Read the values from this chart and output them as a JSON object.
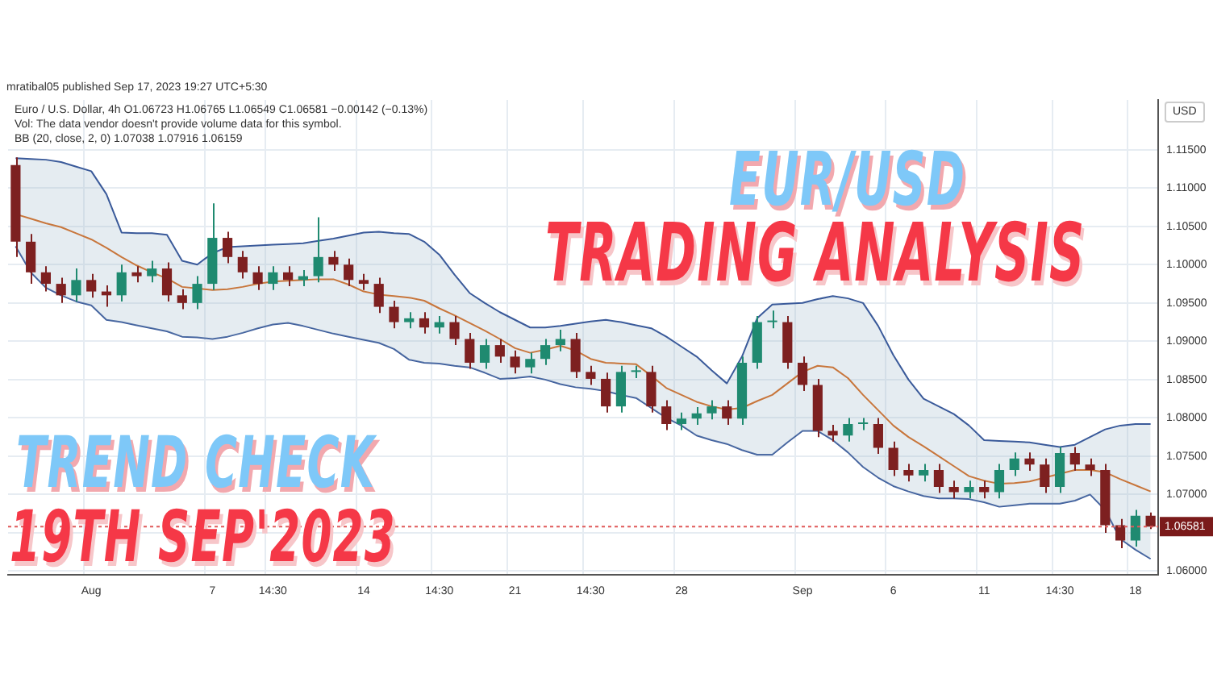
{
  "chart_data": {
    "type": "candlestick",
    "title": "EUR/USD",
    "subtitle": "TRADING ANALYSIS",
    "ylabel": "USD",
    "annotations": [
      "mratibal05 published Sep 17, 2023 19:27 UTC+5:30",
      "Euro / U.S. Dollar, 4h O1.06723 H1.06765 L1.06549 C1.06581 −0.00142 (−0.13%)",
      "Vol: The data vendor doesn't provide volume data for this symbol.",
      "BB (20, close, 2, 0) 1.07038 1.07916 1.06159",
      "TREND CHECK",
      "19TH SEP'2023"
    ],
    "categories": [
      null,
      null,
      null,
      null,
      null,
      "Aug",
      null,
      null,
      null,
      null,
      null,
      null,
      null,
      "7",
      null,
      null,
      null,
      "14:30",
      null,
      null,
      null,
      null,
      null,
      "14",
      null,
      null,
      null,
      null,
      "14:30",
      null,
      null,
      null,
      null,
      "21",
      null,
      null,
      null,
      null,
      "14:30",
      null,
      null,
      null,
      null,
      null,
      "28",
      null,
      null,
      null,
      null,
      null,
      null,
      null,
      "Sep",
      null,
      null,
      null,
      null,
      null,
      "6",
      null,
      null,
      null,
      null,
      null,
      "11",
      null,
      null,
      null,
      null,
      "14:30",
      null,
      null,
      null,
      null,
      "18",
      null
    ],
    "ohlc": [
      [
        1.113,
        1.114,
        1.101,
        1.103
      ],
      [
        1.103,
        1.104,
        1.0975,
        1.099
      ],
      [
        1.099,
        1.0998,
        1.0965,
        1.0975
      ],
      [
        1.0975,
        1.0983,
        1.095,
        1.096
      ],
      [
        1.096,
        1.0995,
        1.0952,
        1.098
      ],
      [
        1.098,
        1.0988,
        1.0957,
        1.0965
      ],
      [
        1.0965,
        1.0973,
        1.0945,
        1.096
      ],
      [
        1.096,
        1.1,
        1.0952,
        1.099
      ],
      [
        1.099,
        1.0998,
        1.0977,
        1.0985
      ],
      [
        1.0985,
        1.1005,
        1.0977,
        1.0995
      ],
      [
        1.0995,
        1.1003,
        1.0952,
        1.096
      ],
      [
        1.096,
        1.0968,
        1.0942,
        1.095
      ],
      [
        1.095,
        1.0985,
        1.0942,
        1.0975
      ],
      [
        1.0975,
        1.108,
        1.0967,
        1.1035
      ],
      [
        1.1035,
        1.1043,
        1.1002,
        1.101
      ],
      [
        1.101,
        1.1018,
        1.0982,
        1.099
      ],
      [
        1.099,
        1.0998,
        1.0967,
        1.0975
      ],
      [
        1.0975,
        1.0998,
        1.0967,
        1.099
      ],
      [
        1.099,
        1.0998,
        1.0972,
        1.098
      ],
      [
        1.098,
        1.0993,
        1.0972,
        1.0985
      ],
      [
        1.0985,
        1.1062,
        1.0977,
        1.101
      ],
      [
        1.101,
        1.1018,
        1.0992,
        1.1
      ],
      [
        1.1,
        1.1008,
        1.0972,
        1.098
      ],
      [
        1.098,
        1.0988,
        1.0967,
        1.0975
      ],
      [
        1.0975,
        1.0983,
        1.0937,
        1.0945
      ],
      [
        1.0945,
        1.0953,
        1.0917,
        1.0925
      ],
      [
        1.0925,
        1.0938,
        1.0917,
        1.093
      ],
      [
        1.093,
        1.0938,
        1.091,
        1.0918
      ],
      [
        1.0918,
        1.0933,
        1.091,
        1.0925
      ],
      [
        1.0925,
        1.0933,
        1.0895,
        1.0903
      ],
      [
        1.0903,
        1.0911,
        1.0864,
        1.0872
      ],
      [
        1.0872,
        1.0903,
        1.0864,
        1.0895
      ],
      [
        1.0895,
        1.0903,
        1.0872,
        1.088
      ],
      [
        1.088,
        1.0888,
        1.0858,
        1.0866
      ],
      [
        1.0866,
        1.0885,
        1.0858,
        1.0877
      ],
      [
        1.0877,
        1.0903,
        1.0869,
        1.0895
      ],
      [
        1.0895,
        1.0915,
        1.0887,
        1.0903
      ],
      [
        1.0903,
        1.0911,
        1.0852,
        1.086
      ],
      [
        1.086,
        1.0868,
        1.0843,
        1.0851
      ],
      [
        1.0851,
        1.0859,
        1.0807,
        1.0815
      ],
      [
        1.0815,
        1.0868,
        1.0807,
        1.086
      ],
      [
        1.086,
        1.0868,
        1.0852,
        1.086
      ],
      [
        1.086,
        1.0868,
        1.0807,
        1.0815
      ],
      [
        1.0815,
        1.0823,
        1.0784,
        1.0792
      ],
      [
        1.0792,
        1.0807,
        1.0784,
        1.0799
      ],
      [
        1.0799,
        1.0814,
        1.0791,
        1.0806
      ],
      [
        1.0806,
        1.0823,
        1.0798,
        1.0815
      ],
      [
        1.0815,
        1.0823,
        1.0791,
        1.0799
      ],
      [
        1.0799,
        1.088,
        1.0791,
        1.0872
      ],
      [
        1.0872,
        1.0933,
        1.0864,
        1.0925
      ],
      [
        1.0925,
        1.094,
        1.0917,
        1.0925
      ],
      [
        1.0925,
        1.0933,
        1.0864,
        1.0872
      ],
      [
        1.0872,
        1.088,
        1.0835,
        1.0843
      ],
      [
        1.0843,
        1.0851,
        1.0775,
        1.0783
      ],
      [
        1.0783,
        1.0791,
        1.0769,
        1.0777
      ],
      [
        1.0777,
        1.08,
        1.0769,
        1.0792
      ],
      [
        1.0792,
        1.08,
        1.0784,
        1.0792
      ],
      [
        1.0792,
        1.08,
        1.0753,
        1.0761
      ],
      [
        1.0761,
        1.0769,
        1.0724,
        1.0732
      ],
      [
        1.0732,
        1.074,
        1.0717,
        1.0725
      ],
      [
        1.0725,
        1.074,
        1.0717,
        1.0732
      ],
      [
        1.0732,
        1.074,
        1.0702,
        1.071
      ],
      [
        1.071,
        1.0718,
        1.0695,
        1.0703
      ],
      [
        1.0703,
        1.0718,
        1.0695,
        1.071
      ],
      [
        1.071,
        1.0718,
        1.0695,
        1.0703
      ],
      [
        1.0703,
        1.074,
        1.0695,
        1.0732
      ],
      [
        1.0732,
        1.0755,
        1.0724,
        1.0747
      ],
      [
        1.0747,
        1.0755,
        1.0731,
        1.0739
      ],
      [
        1.0739,
        1.0747,
        1.0702,
        1.071
      ],
      [
        1.071,
        1.0762,
        1.0702,
        1.0754
      ],
      [
        1.0754,
        1.0762,
        1.0731,
        1.0739
      ],
      [
        1.0739,
        1.0747,
        1.0724,
        1.0732
      ],
      [
        1.0732,
        1.074,
        1.065,
        1.066
      ],
      [
        1.066,
        1.0668,
        1.063,
        1.064
      ],
      [
        1.064,
        1.068,
        1.0632,
        1.06723
      ],
      [
        1.06723,
        1.06765,
        1.06549,
        1.06581
      ]
    ],
    "series": [
      {
        "type": "line",
        "color": "#c8763c",
        "values": [
          1.1066,
          1.106,
          1.1054,
          1.1049,
          1.1041,
          1.1033,
          1.1022,
          1.101,
          1.0999,
          1.099,
          1.0982,
          1.0971,
          1.0969,
          1.0967,
          1.0968,
          1.0971,
          1.0975,
          1.0978,
          1.0979,
          1.098,
          1.0981,
          1.0981,
          1.0974,
          1.0965,
          1.0961,
          1.0959,
          1.0957,
          1.0953,
          1.0943,
          1.0934,
          1.0924,
          1.0914,
          1.0903,
          1.0891,
          1.0885,
          1.0889,
          1.0894,
          1.0888,
          1.0877,
          1.0872,
          1.0871,
          1.087,
          1.0855,
          1.0839,
          1.083,
          1.0821,
          1.0815,
          1.0811,
          1.0813,
          1.0822,
          1.083,
          1.0845,
          1.086,
          1.0868,
          1.0866,
          1.0852,
          1.083,
          1.081,
          1.079,
          1.0775,
          1.0763,
          1.075,
          1.0737,
          1.0724,
          1.0718,
          1.0714,
          1.0715,
          1.0717,
          1.0722,
          1.0727,
          1.0732,
          1.0732,
          1.0729,
          1.072,
          1.0712,
          1.0704
        ]
      },
      {
        "type": "line",
        "color": "#3a5a9a",
        "values": [
          1.1139,
          1.1138,
          1.1137,
          1.1134,
          1.1128,
          1.1122,
          1.1092,
          1.1042,
          1.1041,
          1.1041,
          1.1039,
          1.1005,
          1.1,
          1.1015,
          1.1023,
          1.1024,
          1.1025,
          1.1026,
          1.1027,
          1.1028,
          1.1031,
          1.1034,
          1.1038,
          1.1042,
          1.1043,
          1.1041,
          1.104,
          1.103,
          1.1013,
          1.0987,
          1.0963,
          1.095,
          1.0938,
          1.0928,
          1.0918,
          1.0918,
          1.092,
          1.0923,
          1.0926,
          1.0928,
          1.0925,
          1.0921,
          1.0917,
          1.0906,
          1.0893,
          1.088,
          1.0862,
          1.0845,
          1.088,
          1.093,
          1.0948,
          1.0949,
          1.095,
          1.0955,
          1.0959,
          1.0956,
          1.095,
          1.092,
          1.0882,
          1.085,
          1.0825,
          1.0815,
          1.0805,
          1.079,
          1.0771,
          1.077,
          1.0769,
          1.0768,
          1.0765,
          1.0762,
          1.0765,
          1.0775,
          1.0785,
          1.079,
          1.0792,
          1.0792
        ]
      },
      {
        "type": "line",
        "color": "#3a5a9a",
        "values": [
          1.1024,
          1.099,
          1.097,
          1.096,
          1.0952,
          1.0947,
          1.0928,
          1.0925,
          1.0921,
          1.0917,
          1.0913,
          1.0906,
          1.0905,
          1.0903,
          1.0906,
          1.0911,
          1.0917,
          1.0922,
          1.0924,
          1.092,
          1.0915,
          1.091,
          1.0906,
          1.0902,
          1.0898,
          1.089,
          1.0876,
          1.0872,
          1.0871,
          1.0868,
          1.0866,
          1.0859,
          1.0851,
          1.0852,
          1.0854,
          1.085,
          1.0844,
          1.084,
          1.0838,
          1.0835,
          1.083,
          1.0826,
          1.0813,
          1.08,
          1.079,
          1.0777,
          1.0771,
          1.0766,
          1.0758,
          1.0752,
          1.0752,
          1.0768,
          1.0783,
          1.0783,
          1.0771,
          1.0755,
          1.0736,
          1.0722,
          1.0711,
          1.0704,
          1.0698,
          1.0695,
          1.0695,
          1.0694,
          1.069,
          1.0684,
          1.0686,
          1.0688,
          1.0688,
          1.0688,
          1.0692,
          1.07,
          1.068,
          1.0642,
          1.0628,
          1.0616
        ]
      }
    ],
    "ylim": [
      1.0595,
      1.1215
    ],
    "yticks": [
      {
        "value": 1.06,
        "label": "1.06000"
      },
      {
        "value": 1.065,
        "label": null
      },
      {
        "value": 1.07,
        "label": "1.07000"
      },
      {
        "value": 1.075,
        "label": "1.07500"
      },
      {
        "value": 1.08,
        "label": "1.08000"
      },
      {
        "value": 1.085,
        "label": "1.08500"
      },
      {
        "value": 1.09,
        "label": "1.09000"
      },
      {
        "value": 1.095,
        "label": "1.09500"
      },
      {
        "value": 1.1,
        "label": "1.10000"
      },
      {
        "value": 1.105,
        "label": "1.10500"
      },
      {
        "value": 1.11,
        "label": "1.11000"
      },
      {
        "value": 1.115,
        "label": "1.11500"
      }
    ],
    "ref_lines": [
      {
        "axis": "y",
        "value": 1.06581,
        "label": "1.06581",
        "color": "#e05a5a",
        "line_style": "dotted"
      }
    ],
    "grid": true,
    "legend": false
  }
}
